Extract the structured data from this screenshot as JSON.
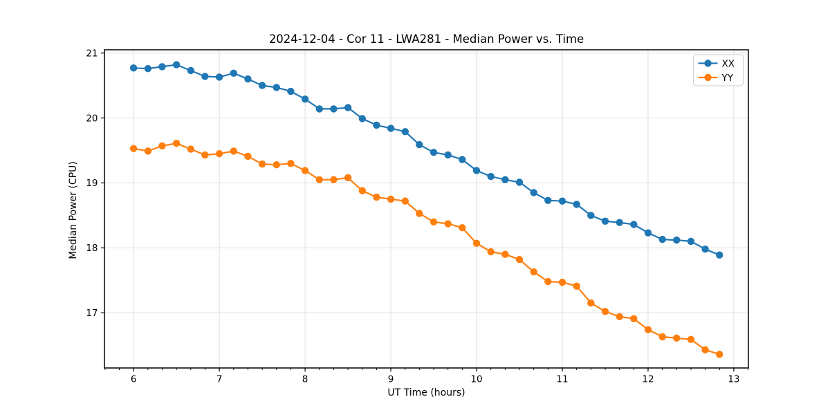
{
  "chart_data": {
    "type": "line",
    "title": "2024-12-04 - Cor 11 - LWA281 - Median Power vs. Time",
    "xlabel": "UT Time (hours)",
    "ylabel": "Median Power (CPU)",
    "xlim": [
      5.66,
      13.17
    ],
    "ylim": [
      16.15,
      21.05
    ],
    "x_ticks": [
      6,
      7,
      8,
      9,
      10,
      11,
      12,
      13
    ],
    "y_ticks": [
      17,
      18,
      19,
      20,
      21
    ],
    "x_minor_step": 0.16667,
    "grid": true,
    "grid_color": "#e2e2e2",
    "background": "#ffffff",
    "legend_position": "upper right",
    "marker": "circle",
    "x": [
      6.0,
      6.167,
      6.333,
      6.5,
      6.667,
      6.833,
      7.0,
      7.167,
      7.333,
      7.5,
      7.667,
      7.833,
      8.0,
      8.167,
      8.333,
      8.5,
      8.667,
      8.833,
      9.0,
      9.167,
      9.333,
      9.5,
      9.667,
      9.833,
      10.0,
      10.167,
      10.333,
      10.5,
      10.667,
      10.833,
      11.0,
      11.167,
      11.333,
      11.5,
      11.667,
      11.833,
      12.0,
      12.167,
      12.333,
      12.5,
      12.667,
      12.833
    ],
    "series": [
      {
        "name": "XX",
        "color": "#1f77b4",
        "values": [
          20.77,
          20.76,
          20.79,
          20.82,
          20.73,
          20.64,
          20.63,
          20.69,
          20.6,
          20.5,
          20.47,
          20.41,
          20.29,
          20.14,
          20.14,
          20.16,
          19.99,
          19.89,
          19.84,
          19.79,
          19.59,
          19.47,
          19.43,
          19.36,
          19.19,
          19.1,
          19.05,
          19.01,
          18.85,
          18.73,
          18.72,
          18.67,
          18.5,
          18.41,
          18.39,
          18.36,
          18.23,
          18.13,
          18.12,
          18.1,
          17.98,
          17.89
        ]
      },
      {
        "name": "YY",
        "color": "#ff7f0e",
        "values": [
          19.53,
          19.49,
          19.57,
          19.61,
          19.52,
          19.43,
          19.45,
          19.49,
          19.41,
          19.29,
          19.28,
          19.3,
          19.19,
          19.05,
          19.05,
          19.08,
          18.88,
          18.78,
          18.75,
          18.72,
          18.53,
          18.4,
          18.37,
          18.31,
          18.07,
          17.94,
          17.9,
          17.82,
          17.63,
          17.48,
          17.47,
          17.41,
          17.15,
          17.02,
          16.94,
          16.91,
          16.74,
          16.63,
          16.61,
          16.59,
          16.43,
          16.36
        ]
      }
    ]
  }
}
